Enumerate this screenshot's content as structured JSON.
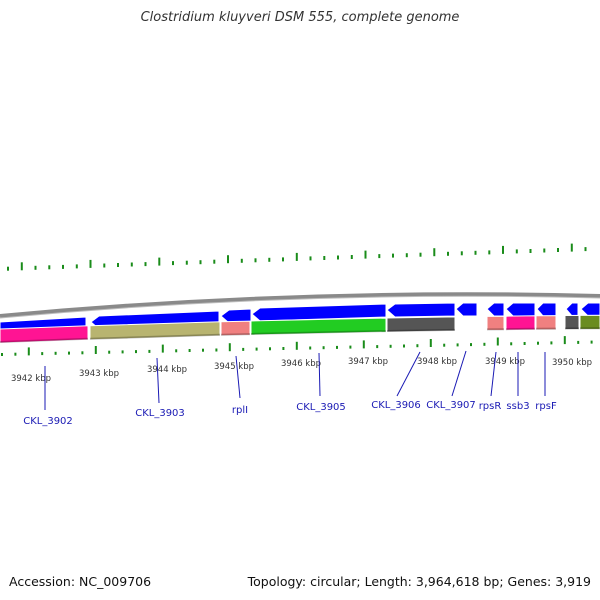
{
  "header": {
    "title": "Clostridium kluyveri DSM 555, complete genome"
  },
  "footer": {
    "accession": "Accession: NC_009706",
    "summary": "Topology: circular; Length: 3,964,618 bp; Genes: 3,919"
  },
  "colors": {
    "backbone": "#8a8a8a",
    "cds": "#0000ff",
    "tick": "#1a8c1a",
    "gene_label": "#1a1ab4",
    "leader_line": "#1a1ab4"
  },
  "scale": {
    "unit": "kbp",
    "labels": [
      "3942 kbp",
      "3943 kbp",
      "3944 kbp",
      "3945 kbp",
      "3946 kbp",
      "3947 kbp",
      "3948 kbp",
      "3949 kbp",
      "3950 kbp"
    ]
  },
  "genes": [
    {
      "label": "CKL_3902",
      "strand": "-",
      "color": "#ff1493"
    },
    {
      "label": "CKL_3903",
      "strand": "-",
      "color": "#b8b470"
    },
    {
      "label": "rplI",
      "strand": "-",
      "color": "#f08080"
    },
    {
      "label": "CKL_3905",
      "strand": "-",
      "color": "#22cc22"
    },
    {
      "label": "CKL_3906",
      "strand": "-",
      "color": "#555555"
    },
    {
      "label": "CKL_3907",
      "strand": "-",
      "color": "#555555"
    },
    {
      "label": "rpsR",
      "strand": "-",
      "color": "#f08080"
    },
    {
      "label": "ssb3",
      "strand": "-",
      "color": "#ff1493"
    },
    {
      "label": "rpsF",
      "strand": "-",
      "color": "#f08080"
    }
  ]
}
